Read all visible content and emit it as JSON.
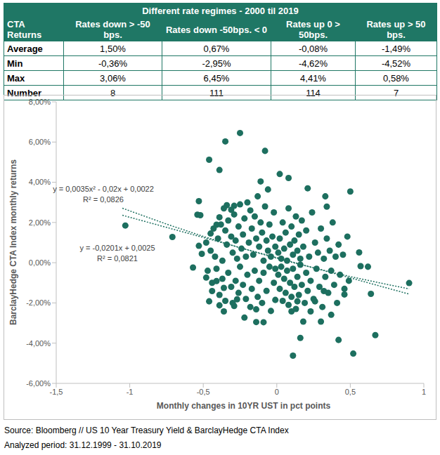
{
  "table": {
    "title": "Different rate regimes - 2000 til 2019",
    "header": [
      "CTA Returns",
      "Rates down > -50 bps.",
      "Rates down -50bps. < 0",
      "Rates up 0 > 50bps.",
      "Rates up > 50 bps."
    ],
    "rows": [
      [
        "Average",
        "1,50%",
        "0,67%",
        "-0,08%",
        "-1,49%"
      ],
      [
        "Min",
        "-0,36%",
        "-2,95%",
        "-4,62%",
        "-4,52%"
      ],
      [
        "Max",
        "3,06%",
        "6,45%",
        "4,41%",
        "0,58%"
      ],
      [
        "Number",
        "8",
        "111",
        "114",
        "7"
      ]
    ]
  },
  "chart_data": {
    "type": "scatter",
    "x_label": "Monthly changes in 10YR UST in pct points",
    "y_label": "BarclayHedge CTA Index monthly returns",
    "xlim": [
      -1.5,
      1
    ],
    "xticks": [
      {
        "value": -1.5,
        "label": "-1,5"
      },
      -1,
      {
        "value": -0.5,
        "label": "-0,5"
      },
      0,
      {
        "value": 0.5,
        "label": "0,5"
      },
      1
    ],
    "ylim": [
      -6,
      8
    ],
    "yticks": [
      {
        "value": -6,
        "label": "-6,00%"
      },
      {
        "value": -4,
        "label": "-4,00%"
      },
      {
        "value": -2,
        "label": "-2,00%"
      },
      {
        "value": 0,
        "label": "0,00%"
      },
      {
        "value": 2,
        "label": "2,00%"
      },
      {
        "value": 4,
        "label": "4,00%"
      },
      {
        "value": 6,
        "label": "6,00%"
      },
      {
        "value": 8,
        "label": "8,00%"
      }
    ],
    "grid": false,
    "series": [
      {
        "type": "scatter",
        "marker": "circle",
        "color": "#1d6f5f",
        "x": [
          -0.25,
          -0.35,
          -0.08,
          -0.46,
          0.02,
          -0.39,
          0.08,
          0.21,
          0.5,
          -0.53,
          -0.11,
          -0.06,
          0.33,
          0.34,
          -1.03,
          -0.71,
          -0.54,
          -0.52,
          -0.57,
          -0.53,
          -0.51,
          -0.45,
          -0.41,
          -0.39,
          -0.34,
          -0.29,
          -0.31,
          -0.48,
          -0.41,
          -0.44,
          -0.46,
          -0.36,
          -0.39,
          -0.36,
          -0.29,
          -0.27,
          -0.22,
          -0.14,
          -0.14,
          -0.09,
          -0.01,
          0.16,
          0.11,
          0.42,
          0.52,
          0.67,
          0.64,
          0.56,
          0.57,
          0.62,
          0.9,
          0.46,
          0.37,
          0.3,
          0.23,
          0.18,
          0.1,
          0.26,
          0.32,
          0.14,
          -0.48,
          -0.45,
          -0.43,
          -0.42,
          -0.4,
          -0.38,
          -0.37,
          -0.36,
          -0.35,
          -0.34,
          -0.33,
          -0.31,
          -0.3,
          -0.29,
          -0.28,
          -0.27,
          -0.26,
          -0.25,
          -0.24,
          -0.23,
          -0.22,
          -0.21,
          -0.2,
          -0.19,
          -0.18,
          -0.17,
          -0.16,
          -0.15,
          -0.14,
          -0.13,
          -0.12,
          -0.11,
          -0.1,
          -0.09,
          -0.08,
          -0.07,
          -0.06,
          -0.05,
          -0.04,
          -0.03,
          -0.02,
          -0.01,
          -0.47,
          -0.44,
          -0.41,
          -0.39,
          -0.37,
          -0.35,
          -0.33,
          -0.31,
          -0.3,
          -0.28,
          -0.26,
          -0.25,
          -0.23,
          -0.21,
          -0.2,
          -0.18,
          -0.17,
          -0.15,
          -0.13,
          -0.12,
          -0.1,
          -0.09,
          -0.07,
          -0.05,
          -0.04,
          -0.02,
          -0.01,
          0.01,
          0.02,
          0.03,
          0.04,
          0.05,
          0.06,
          0.07,
          0.08,
          0.09,
          0.1,
          0.11,
          0.12,
          0.13,
          0.14,
          0.15,
          0.16,
          0.17,
          0.18,
          0.2,
          0.22,
          0.24,
          0.26,
          0.28,
          0.3,
          0.32,
          0.34,
          0.36,
          0.38,
          0.4,
          0.42,
          0.45,
          0.48,
          0.01,
          0.02,
          0.03,
          0.04,
          0.05,
          0.06,
          0.07,
          0.08,
          0.09,
          0.1,
          0.11,
          0.12,
          0.13,
          0.14,
          0.15,
          0.16,
          0.17,
          0.19,
          0.2,
          0.21,
          0.23,
          0.25,
          0.27,
          0.29,
          0.31,
          0.33,
          0.35,
          0.37,
          0.39,
          0.41,
          0.43,
          0.46,
          0.49
        ],
        "values": [
          6.45,
          6.03,
          5.56,
          5.12,
          4.41,
          4.61,
          4.21,
          3.7,
          3.54,
          3.06,
          4.04,
          3.64,
          3.3,
          2.79,
          1.85,
          1.28,
          2.39,
          2.36,
          -0.24,
          0.84,
          0.44,
          1.45,
          1.89,
          2.26,
          2.86,
          2.83,
          2.63,
          -0.74,
          -0.91,
          -1.41,
          -1.92,
          -1.25,
          -2.12,
          -2.42,
          -2.15,
          -1.82,
          -2.73,
          -2.32,
          -2.95,
          -2.96,
          -1.85,
          -3.74,
          -4.62,
          -3.84,
          -4.52,
          -3.6,
          -1.55,
          0.51,
          -0.17,
          -0.2,
          -1.01,
          -1.58,
          -2.59,
          -2.93,
          -2.42,
          -2.93,
          -2.42,
          -1.92,
          -1.41,
          -1.92,
          1.0,
          0.6,
          1.7,
          0.3,
          1.2,
          1.9,
          0.1,
          2.7,
          1.6,
          0.9,
          2.1,
          1.3,
          0.5,
          2.4,
          1.1,
          0.2,
          1.8,
          2.9,
          0.7,
          1.4,
          2.2,
          0.3,
          3.0,
          1.0,
          2.6,
          1.7,
          0.4,
          2.3,
          1.2,
          3.3,
          0.8,
          2.0,
          1.5,
          0.1,
          2.8,
          1.1,
          0.6,
          1.9,
          0.3,
          1.3,
          2.5,
          0.8,
          -0.4,
          -1.0,
          -0.3,
          -1.6,
          -0.8,
          -1.9,
          -0.5,
          -1.2,
          -2.0,
          -0.9,
          -1.5,
          -0.2,
          -1.1,
          -1.8,
          -0.6,
          -2.2,
          -1.3,
          -0.4,
          -1.7,
          -0.9,
          -2.0,
          -0.5,
          -1.4,
          -0.2,
          -2.4,
          -1.0,
          -0.3,
          0.5,
          1.2,
          0.2,
          2.0,
          0.7,
          1.5,
          0.1,
          2.7,
          0.9,
          1.8,
          0.4,
          1.1,
          2.3,
          0.6,
          1.4,
          0.2,
          2.1,
          0.8,
          1.6,
          0.3,
          2.5,
          1.0,
          0.5,
          1.7,
          0.2,
          1.2,
          0.6,
          2.0,
          0.3,
          0.9,
          0.4,
          1.3,
          -0.6,
          -1.3,
          -0.2,
          -1.9,
          -0.8,
          -1.5,
          -0.4,
          -2.1,
          -1.0,
          -1.7,
          -0.3,
          -1.2,
          -2.3,
          -0.7,
          -1.6,
          -0.1,
          -1.1,
          -2.0,
          -0.5,
          -1.4,
          -0.9,
          -1.8,
          -0.3,
          -1.2,
          -2.2,
          -0.7,
          -1.5,
          -0.4,
          -1.1,
          -2.0,
          -0.6,
          -1.3,
          -0.9
        ]
      },
      {
        "type": "line",
        "line_style": "dotted",
        "color": "#1d6f5f",
        "annotation": [
          "y = 0,0035x² - 0,02x + 0,0022",
          "R² = 0,0826"
        ],
        "x": [
          -1.05,
          -0.75,
          -0.5,
          -0.25,
          0,
          0.25,
          0.5,
          0.75,
          0.9
        ],
        "values": [
          2.71,
          1.92,
          1.31,
          0.74,
          0.22,
          -0.26,
          -0.69,
          -1.08,
          -1.3
        ]
      },
      {
        "type": "line",
        "line_style": "dotted",
        "color": "#1d6f5f",
        "annotation": [
          "y = -0,0201x + 0,0025",
          "R² = 0,0821"
        ],
        "x": [
          -1.05,
          0.9
        ],
        "values": [
          2.36,
          -1.56
        ]
      }
    ]
  },
  "source": [
    "Source: Bloomberg // US 10 Year Treasury Yield & BarclayHedge CTA Index",
    "Analyzed period: 31.12.1999 - 31.10.2019"
  ]
}
